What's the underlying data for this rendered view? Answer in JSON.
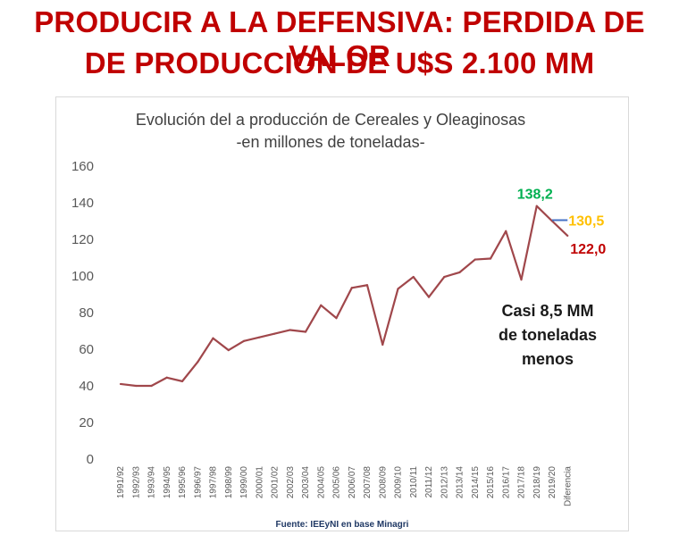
{
  "headline": {
    "line1": "PRODUCIR A LA DEFENSIVA: PERDIDA DE VALOR",
    "line2": "DE PRODUCCION DE U$S 2.100 MM"
  },
  "colors": {
    "headline": "#c00000",
    "line": "#a0474b",
    "peak_label": "#00b050",
    "expected_label": "#ffc000",
    "final_label": "#c00000",
    "expected_line": "#4472c4",
    "source": "#1f3864"
  },
  "chart_data": {
    "type": "line",
    "title": "Evolución del a producción de Cereales y Oleaginosas",
    "subtitle": "-en millones de toneladas-",
    "ylim": [
      0,
      160
    ],
    "yticks": [
      0,
      20,
      40,
      60,
      80,
      100,
      120,
      140,
      160
    ],
    "grid": false,
    "categories": [
      "1991/92",
      "1992/93",
      "1993/94",
      "1994/95",
      "1995/96",
      "1996/97",
      "1997/98",
      "1998/99",
      "1999/00",
      "2000/01",
      "2001/02",
      "2002/03",
      "2003/04",
      "2004/05",
      "2005/06",
      "2006/07",
      "2007/08",
      "2008/09",
      "2009/10",
      "2010/11",
      "2011/12",
      "2012/13",
      "2013/14",
      "2014/15",
      "2015/16",
      "2016/17",
      "2017/18",
      "2018/19",
      "2019/20",
      "Diferencia"
    ],
    "series": [
      {
        "values": [
          41,
          40,
          40,
          44.5,
          42.5,
          53,
          66,
          59.5,
          64.5,
          66.5,
          68.5,
          70.5,
          69.5,
          84,
          77,
          93.5,
          95,
          62.5,
          93,
          99.5,
          88.5,
          99.5,
          102,
          109,
          109.5,
          124.5,
          98,
          138.2,
          130,
          122.0
        ]
      }
    ],
    "expected_segment": {
      "from_category": "2019/20",
      "to_category": "Diferencia",
      "value": 130.5
    },
    "labels": {
      "peak": "138,2",
      "expected": "130,5",
      "final": "122,0"
    },
    "annotation": [
      "Casi 8,5 MM",
      "de toneladas",
      "menos"
    ],
    "source": "Fuente: IEEyNI en base Minagri"
  }
}
